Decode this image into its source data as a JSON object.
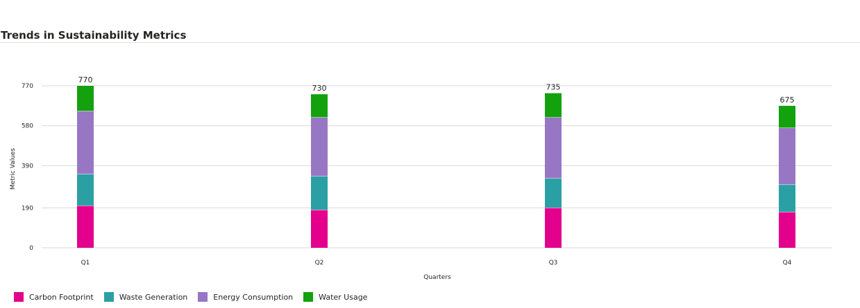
{
  "chart_data": {
    "type": "bar",
    "stacked": true,
    "title": "Trends in Sustainability Metrics",
    "xlabel": "Quarters",
    "ylabel": "Metric Values",
    "categories": [
      "Q1",
      "Q2",
      "Q3",
      "Q4"
    ],
    "ylim": [
      0,
      770
    ],
    "yticks": [
      0,
      190,
      390,
      580,
      770
    ],
    "grid": true,
    "legend_position": "bottom-left",
    "series": [
      {
        "name": "Carbon Footprint",
        "color": "#e3008c",
        "values": [
          200,
          180,
          190,
          170
        ]
      },
      {
        "name": "Waste Generation",
        "color": "#2aa0a4",
        "values": [
          150,
          160,
          140,
          130
        ]
      },
      {
        "name": "Energy Consumption",
        "color": "#9777c4",
        "values": [
          300,
          280,
          290,
          270
        ]
      },
      {
        "name": "Water Usage",
        "color": "#13a10e",
        "values": [
          120,
          110,
          115,
          105
        ]
      }
    ],
    "totals": [
      770,
      730,
      735,
      675
    ]
  }
}
